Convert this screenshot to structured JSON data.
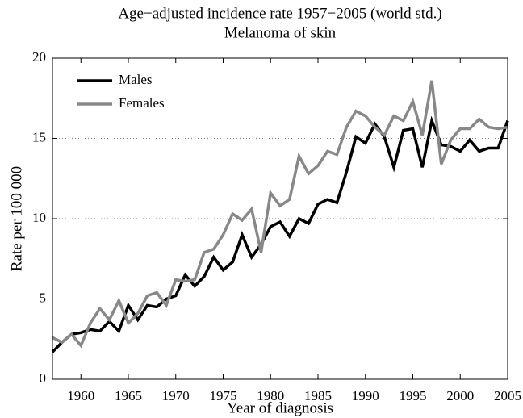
{
  "chart_data": {
    "type": "line",
    "title": "Age−adjusted incidence rate 1957−2005 (world std.)",
    "subtitle": "Melanoma of skin",
    "x_label": "Year of diagnosis",
    "y_label": "Rate per 100 000",
    "x": [
      1957,
      1958,
      1959,
      1960,
      1961,
      1962,
      1963,
      1964,
      1965,
      1966,
      1967,
      1968,
      1969,
      1970,
      1971,
      1972,
      1973,
      1974,
      1975,
      1976,
      1977,
      1978,
      1979,
      1980,
      1981,
      1982,
      1983,
      1984,
      1985,
      1986,
      1987,
      1988,
      1989,
      1990,
      1991,
      1992,
      1993,
      1994,
      1995,
      1996,
      1997,
      1998,
      1999,
      2000,
      2001,
      2002,
      2003,
      2004,
      2005
    ],
    "series": [
      {
        "name": "Males",
        "color": "#000000",
        "values": [
          1.7,
          2.3,
          2.8,
          2.9,
          3.1,
          3.0,
          3.6,
          3.0,
          4.6,
          3.7,
          4.6,
          4.5,
          5.0,
          5.2,
          6.5,
          5.8,
          6.4,
          7.6,
          6.8,
          7.3,
          9.0,
          7.6,
          8.4,
          9.5,
          9.8,
          8.9,
          10.0,
          9.7,
          10.9,
          11.2,
          11.0,
          12.9,
          15.1,
          14.7,
          15.9,
          15.1,
          13.2,
          15.5,
          15.6,
          13.2,
          16.1,
          14.6,
          14.5,
          14.2,
          14.9,
          14.2,
          14.4,
          14.4,
          16.1
        ]
      },
      {
        "name": "Females",
        "color": "#888888",
        "values": [
          2.6,
          2.3,
          2.8,
          2.1,
          3.5,
          4.4,
          3.7,
          4.9,
          3.5,
          4.1,
          5.2,
          5.4,
          4.6,
          6.2,
          6.1,
          6.2,
          7.9,
          8.1,
          9.0,
          10.3,
          9.9,
          10.6,
          7.9,
          11.6,
          10.8,
          11.2,
          13.9,
          12.8,
          13.3,
          14.2,
          14.0,
          15.7,
          16.7,
          16.4,
          15.7,
          15.2,
          16.4,
          16.1,
          17.3,
          15.2,
          18.6,
          13.4,
          14.9,
          15.6,
          15.6,
          16.2,
          15.7,
          15.6,
          15.7
        ]
      }
    ],
    "xlim": [
      1957,
      2005
    ],
    "xticks": [
      1960,
      1965,
      1970,
      1975,
      1980,
      1985,
      1990,
      1995,
      2000,
      2005
    ],
    "ylim": [
      0,
      20
    ],
    "yticks": [
      0,
      5,
      10,
      15,
      20
    ],
    "grid": true,
    "legend": "upper-left"
  }
}
